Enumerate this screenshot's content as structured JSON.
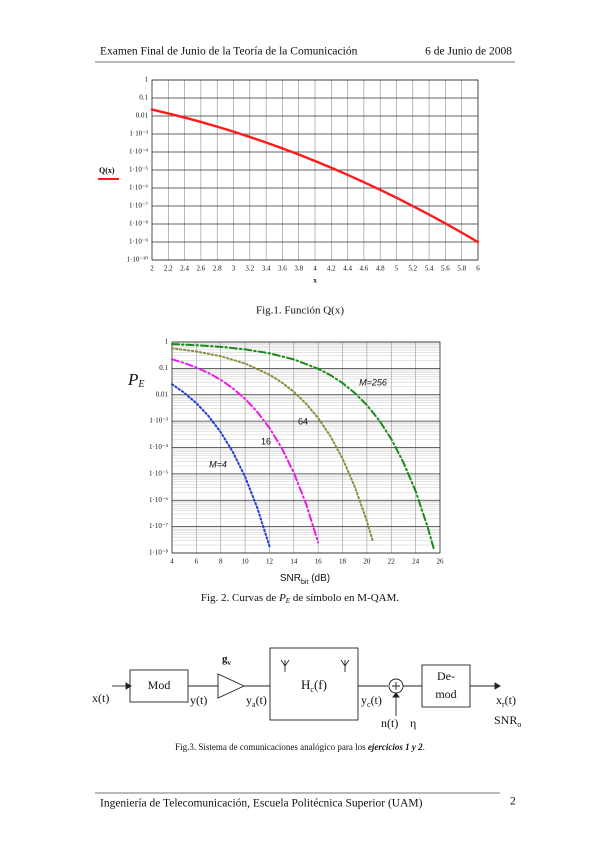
{
  "header": {
    "left": "Examen Final de Junio de la Teoría de la Comunicación",
    "right": "6 de Junio de 2008"
  },
  "chart_data": [
    {
      "type": "line",
      "log_y": true,
      "grid": true,
      "minor_grid": false,
      "x_label": "x",
      "x": [
        2,
        2.2,
        2.4,
        2.6,
        2.8,
        3,
        3.2,
        3.4,
        3.6,
        3.8,
        4,
        4.2,
        4.4,
        4.6,
        4.8,
        5,
        5.2,
        5.4,
        5.6,
        5.8,
        6
      ],
      "series": [
        {
          "name": "Q(x)",
          "color": "#ff1a1a",
          "style": "solid",
          "values": [
            0.02275,
            0.0139,
            0.0082,
            0.00466,
            0.00256,
            0.00135,
            0.000687,
            0.000337,
            0.000159,
            7.23e-05,
            3.17e-05,
            1.33e-05,
            5.41e-06,
            2.11e-06,
            7.93e-07,
            2.87e-07,
            9.96e-08,
            3.33e-08,
            1.07e-08,
            3.32e-09,
            9.87e-10
          ]
        }
      ],
      "xlim": [
        2,
        6
      ],
      "xticks": [
        2,
        2.2,
        2.4,
        2.6,
        2.8,
        3,
        3.2,
        3.4,
        3.6,
        3.8,
        4,
        4.2,
        4.4,
        4.6,
        4.8,
        5,
        5.2,
        5.4,
        5.6,
        5.8,
        6
      ],
      "ylim": [
        1e-10,
        1
      ],
      "yticks": [
        1,
        0.1,
        0.01,
        {
          "value": 0.001,
          "label": "1·10⁻³"
        },
        {
          "value": 0.0001,
          "label": "1·10⁻⁴"
        },
        {
          "value": 1e-05,
          "label": "1·10⁻⁵"
        },
        {
          "value": 1e-06,
          "label": "1·10⁻⁶"
        },
        {
          "value": 1e-07,
          "label": "1·10⁻⁷"
        },
        {
          "value": 1e-08,
          "label": "1·10⁻⁸"
        },
        {
          "value": 1e-09,
          "label": "1·10⁻⁹"
        },
        {
          "value": 1e-10,
          "label": "1·10⁻¹⁰"
        }
      ]
    },
    {
      "type": "line",
      "log_y": true,
      "grid": true,
      "minor_grid": true,
      "y_label": {
        "base": "P",
        "sub": "E"
      },
      "x_label": {
        "base": "SNR",
        "sub": "bit",
        "tail": " (dB)"
      },
      "series": [
        {
          "name": "M=4",
          "color": "#1f3fd8",
          "style": "dotted",
          "x": [
            4,
            5,
            6,
            7,
            8,
            9,
            10,
            11,
            12
          ],
          "values": [
            0.025,
            0.0119,
            0.0048,
            0.00155,
            0.00038,
            6.7e-05,
            7.7e-06,
            5.2e-07,
            1.8e-08
          ]
        },
        {
          "name": "16",
          "color": "#e61ee6",
          "style": "dashdot",
          "x": [
            4,
            5,
            6,
            7,
            8,
            9,
            10,
            11,
            12,
            13,
            14,
            15,
            16
          ],
          "values": [
            0.22,
            0.16,
            0.108,
            0.0667,
            0.0367,
            0.0175,
            0.007,
            0.00225,
            0.00055,
            9.7e-05,
            1.1e-05,
            7.4e-07,
            2.5e-08
          ]
        },
        {
          "name": "64",
          "color": "#8c8c3c",
          "style": "dotted",
          "x": [
            4,
            6,
            8,
            10,
            12,
            13,
            14,
            15,
            16,
            17,
            18,
            19,
            20,
            20.5
          ],
          "values": [
            0.574,
            0.438,
            0.289,
            0.153,
            0.0575,
            0.0296,
            0.0129,
            0.00462,
            0.0013,
            0.00027,
            3.8e-05,
            3.3e-06,
            1.6e-07,
            2.6e-08
          ]
        },
        {
          "name": "M=256",
          "color": "#1a8a1a",
          "style": "dashdot",
          "x": [
            4,
            6,
            8,
            10,
            12,
            14,
            16,
            17,
            18,
            19,
            20,
            21,
            22,
            23,
            24,
            25,
            25.5
          ],
          "values": [
            0.83,
            0.757,
            0.655,
            0.525,
            0.373,
            0.219,
            0.0966,
            0.0553,
            0.0277,
            0.0117,
            0.00404,
            0.00108,
            0.00021,
            2.7e-05,
            2.2e-06,
            9.2e-08,
            1.4e-08
          ]
        }
      ],
      "xlim": [
        4,
        26
      ],
      "xticks": [
        4,
        6,
        8,
        10,
        12,
        14,
        16,
        18,
        20,
        22,
        24,
        26
      ],
      "ylim": [
        1e-08,
        1
      ],
      "yticks": [
        1,
        0.1,
        0.01,
        {
          "value": 0.001,
          "label": "1·10⁻³"
        },
        {
          "value": 0.0001,
          "label": "1·10⁻⁴"
        },
        {
          "value": 1e-05,
          "label": "1·10⁻⁵"
        },
        {
          "value": 1e-06,
          "label": "1·10⁻⁶"
        },
        {
          "value": 1e-07,
          "label": "1·10⁻⁷"
        },
        {
          "value": 1e-08,
          "label": "1·10⁻⁸"
        }
      ]
    }
  ],
  "captions": {
    "fig1": "Fig.1. Función Q(x)",
    "fig2": {
      "pre": "Fig. 2. Curvas de ",
      "base": "P",
      "sub": "E",
      "post": " de símbolo en M-QAM."
    },
    "fig3": {
      "pre": "Fig.3. Sistema de comunicaciones analógico para los ",
      "em": "ejercicios 1 y 2",
      "post": "."
    }
  },
  "diagram": {
    "mod": "Mod",
    "demod": [
      "De-",
      "mod"
    ],
    "gain": {
      "base": "g",
      "sub": "v"
    },
    "channel": {
      "base": "H",
      "sub": "c",
      "tail": "(f)"
    },
    "signals": {
      "x": {
        "base": "x",
        "tail": "(t)"
      },
      "y": {
        "base": "y",
        "tail": "(t)"
      },
      "ya": {
        "base": "y",
        "sub": "a",
        "tail": "(t)"
      },
      "yc": {
        "base": "y",
        "sub": "c",
        "tail": "(t)"
      },
      "n": {
        "base": "n",
        "tail": "(t)"
      },
      "eta": {
        "base": "η"
      },
      "xr": {
        "base": "x",
        "sub": "r",
        "tail": "(t)"
      },
      "snr": {
        "base": "SNR",
        "sub": "o"
      }
    }
  },
  "footer": {
    "left": "Ingeniería de Telecomunicación, Escuela Politécnica Superior (UAM)",
    "page": "2"
  }
}
